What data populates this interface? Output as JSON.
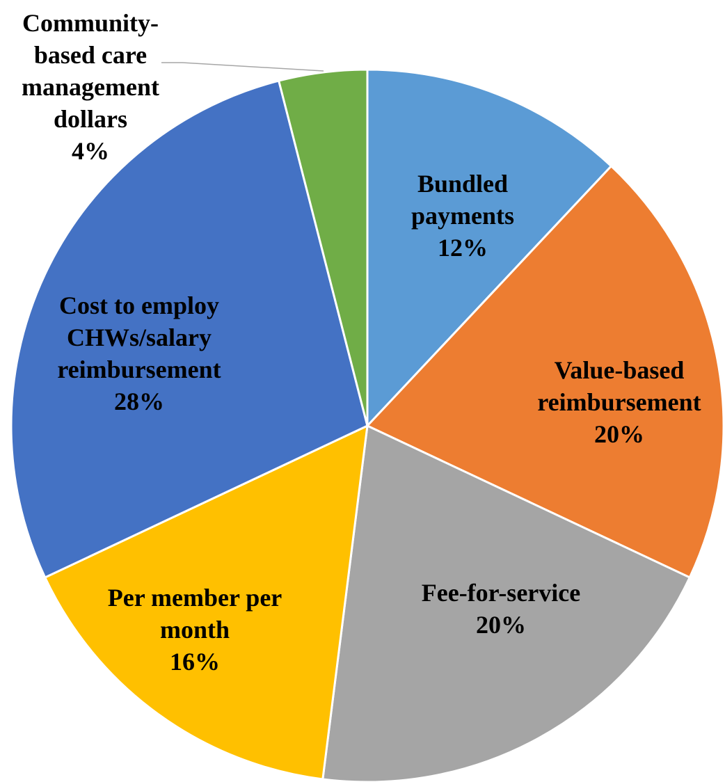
{
  "chart_data": {
    "type": "pie",
    "categories": [
      "Bundled payments",
      "Value-based reimbursement",
      "Fee-for-service",
      "Per member per month",
      "Cost to employ CHWs/salary reimbursement",
      "Community-based care management dollars"
    ],
    "values": [
      12,
      20,
      20,
      16,
      28,
      4
    ],
    "value_labels": [
      "12%",
      "20%",
      "20%",
      "16%",
      "28%",
      "4%"
    ],
    "colors": [
      "#5b9bd5",
      "#ed7d31",
      "#a5a5a5",
      "#ffc000",
      "#4472c4",
      "#70ad47"
    ]
  }
}
